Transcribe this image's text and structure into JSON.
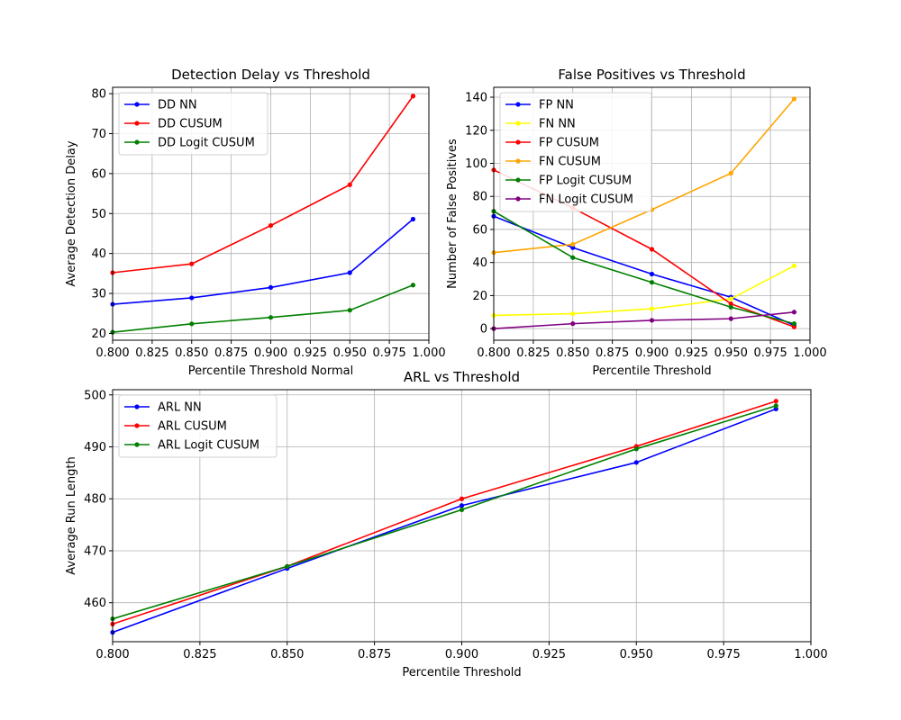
{
  "chart_data": [
    {
      "type": "line",
      "title": "Detection Delay vs Threshold",
      "xlabel": "Percentile Threshold Normal",
      "ylabel": "Average Detection Delay",
      "xlim": [
        0.8,
        1.0
      ],
      "ylim": [
        18.3,
        81.6
      ],
      "xticks": [
        "0.800",
        "0.825",
        "0.850",
        "0.875",
        "0.900",
        "0.925",
        "0.950",
        "0.975",
        "1.000"
      ],
      "yticks": [
        "20",
        "30",
        "40",
        "50",
        "60",
        "70",
        "80"
      ],
      "grid": true,
      "legend": "upper-left",
      "x": [
        0.8,
        0.85,
        0.9,
        0.95,
        0.99
      ],
      "series": [
        {
          "name": "DD NN",
          "color": "#0000ff",
          "values": [
            27.3,
            28.9,
            31.5,
            35.2,
            48.6
          ]
        },
        {
          "name": "DD CUSUM",
          "color": "#ff0000",
          "values": [
            35.2,
            37.4,
            47.0,
            57.2,
            79.4
          ]
        },
        {
          "name": "DD Logit CUSUM",
          "color": "#008000",
          "values": [
            20.3,
            22.4,
            24.0,
            25.8,
            32.1
          ]
        }
      ]
    },
    {
      "type": "line",
      "title": "False Positives vs Threshold",
      "xlabel": "Percentile Threshold",
      "ylabel": "Number of False Positives",
      "xlim": [
        0.8,
        1.0
      ],
      "ylim": [
        -7,
        146
      ],
      "xticks": [
        "0.800",
        "0.825",
        "0.850",
        "0.875",
        "0.900",
        "0.925",
        "0.950",
        "0.975",
        "1.000"
      ],
      "yticks": [
        "0",
        "20",
        "40",
        "60",
        "80",
        "100",
        "120",
        "140"
      ],
      "grid": true,
      "legend": "upper-left",
      "x": [
        0.8,
        0.85,
        0.9,
        0.95,
        0.99
      ],
      "series": [
        {
          "name": "FP NN",
          "color": "#0000ff",
          "values": [
            68,
            49,
            33,
            19,
            2
          ]
        },
        {
          "name": "FN NN",
          "color": "#ffff00",
          "values": [
            8,
            9,
            12,
            18,
            38
          ]
        },
        {
          "name": "FP CUSUM",
          "color": "#ff0000",
          "values": [
            96,
            73,
            48,
            15,
            1
          ]
        },
        {
          "name": "FN CUSUM",
          "color": "#ffa500",
          "values": [
            46,
            51,
            72,
            94,
            139
          ]
        },
        {
          "name": "FP Logit CUSUM",
          "color": "#008000",
          "values": [
            71,
            43,
            28,
            13,
            3
          ]
        },
        {
          "name": "FN Logit CUSUM",
          "color": "#800080",
          "values": [
            0,
            3,
            5,
            6,
            10
          ]
        }
      ]
    },
    {
      "type": "line",
      "title": "ARL vs Threshold",
      "xlabel": "Percentile Threshold",
      "ylabel": "Average Run Length",
      "xlim": [
        0.8,
        1.0
      ],
      "ylim": [
        452.5,
        501.0
      ],
      "xticks": [
        "0.800",
        "0.825",
        "0.850",
        "0.875",
        "0.900",
        "0.925",
        "0.950",
        "0.975",
        "1.000"
      ],
      "yticks": [
        "460",
        "470",
        "480",
        "490",
        "500"
      ],
      "grid": true,
      "legend": "upper-left",
      "x": [
        0.8,
        0.85,
        0.9,
        0.95,
        0.99
      ],
      "series": [
        {
          "name": "ARL NN",
          "color": "#0000ff",
          "values": [
            454.3,
            466.6,
            478.7,
            487.0,
            497.3
          ]
        },
        {
          "name": "ARL CUSUM",
          "color": "#ff0000",
          "values": [
            455.9,
            467.0,
            480.0,
            490.1,
            498.8
          ]
        },
        {
          "name": "ARL Logit CUSUM",
          "color": "#008000",
          "values": [
            456.9,
            467.0,
            477.9,
            489.6,
            497.9
          ]
        }
      ]
    }
  ]
}
